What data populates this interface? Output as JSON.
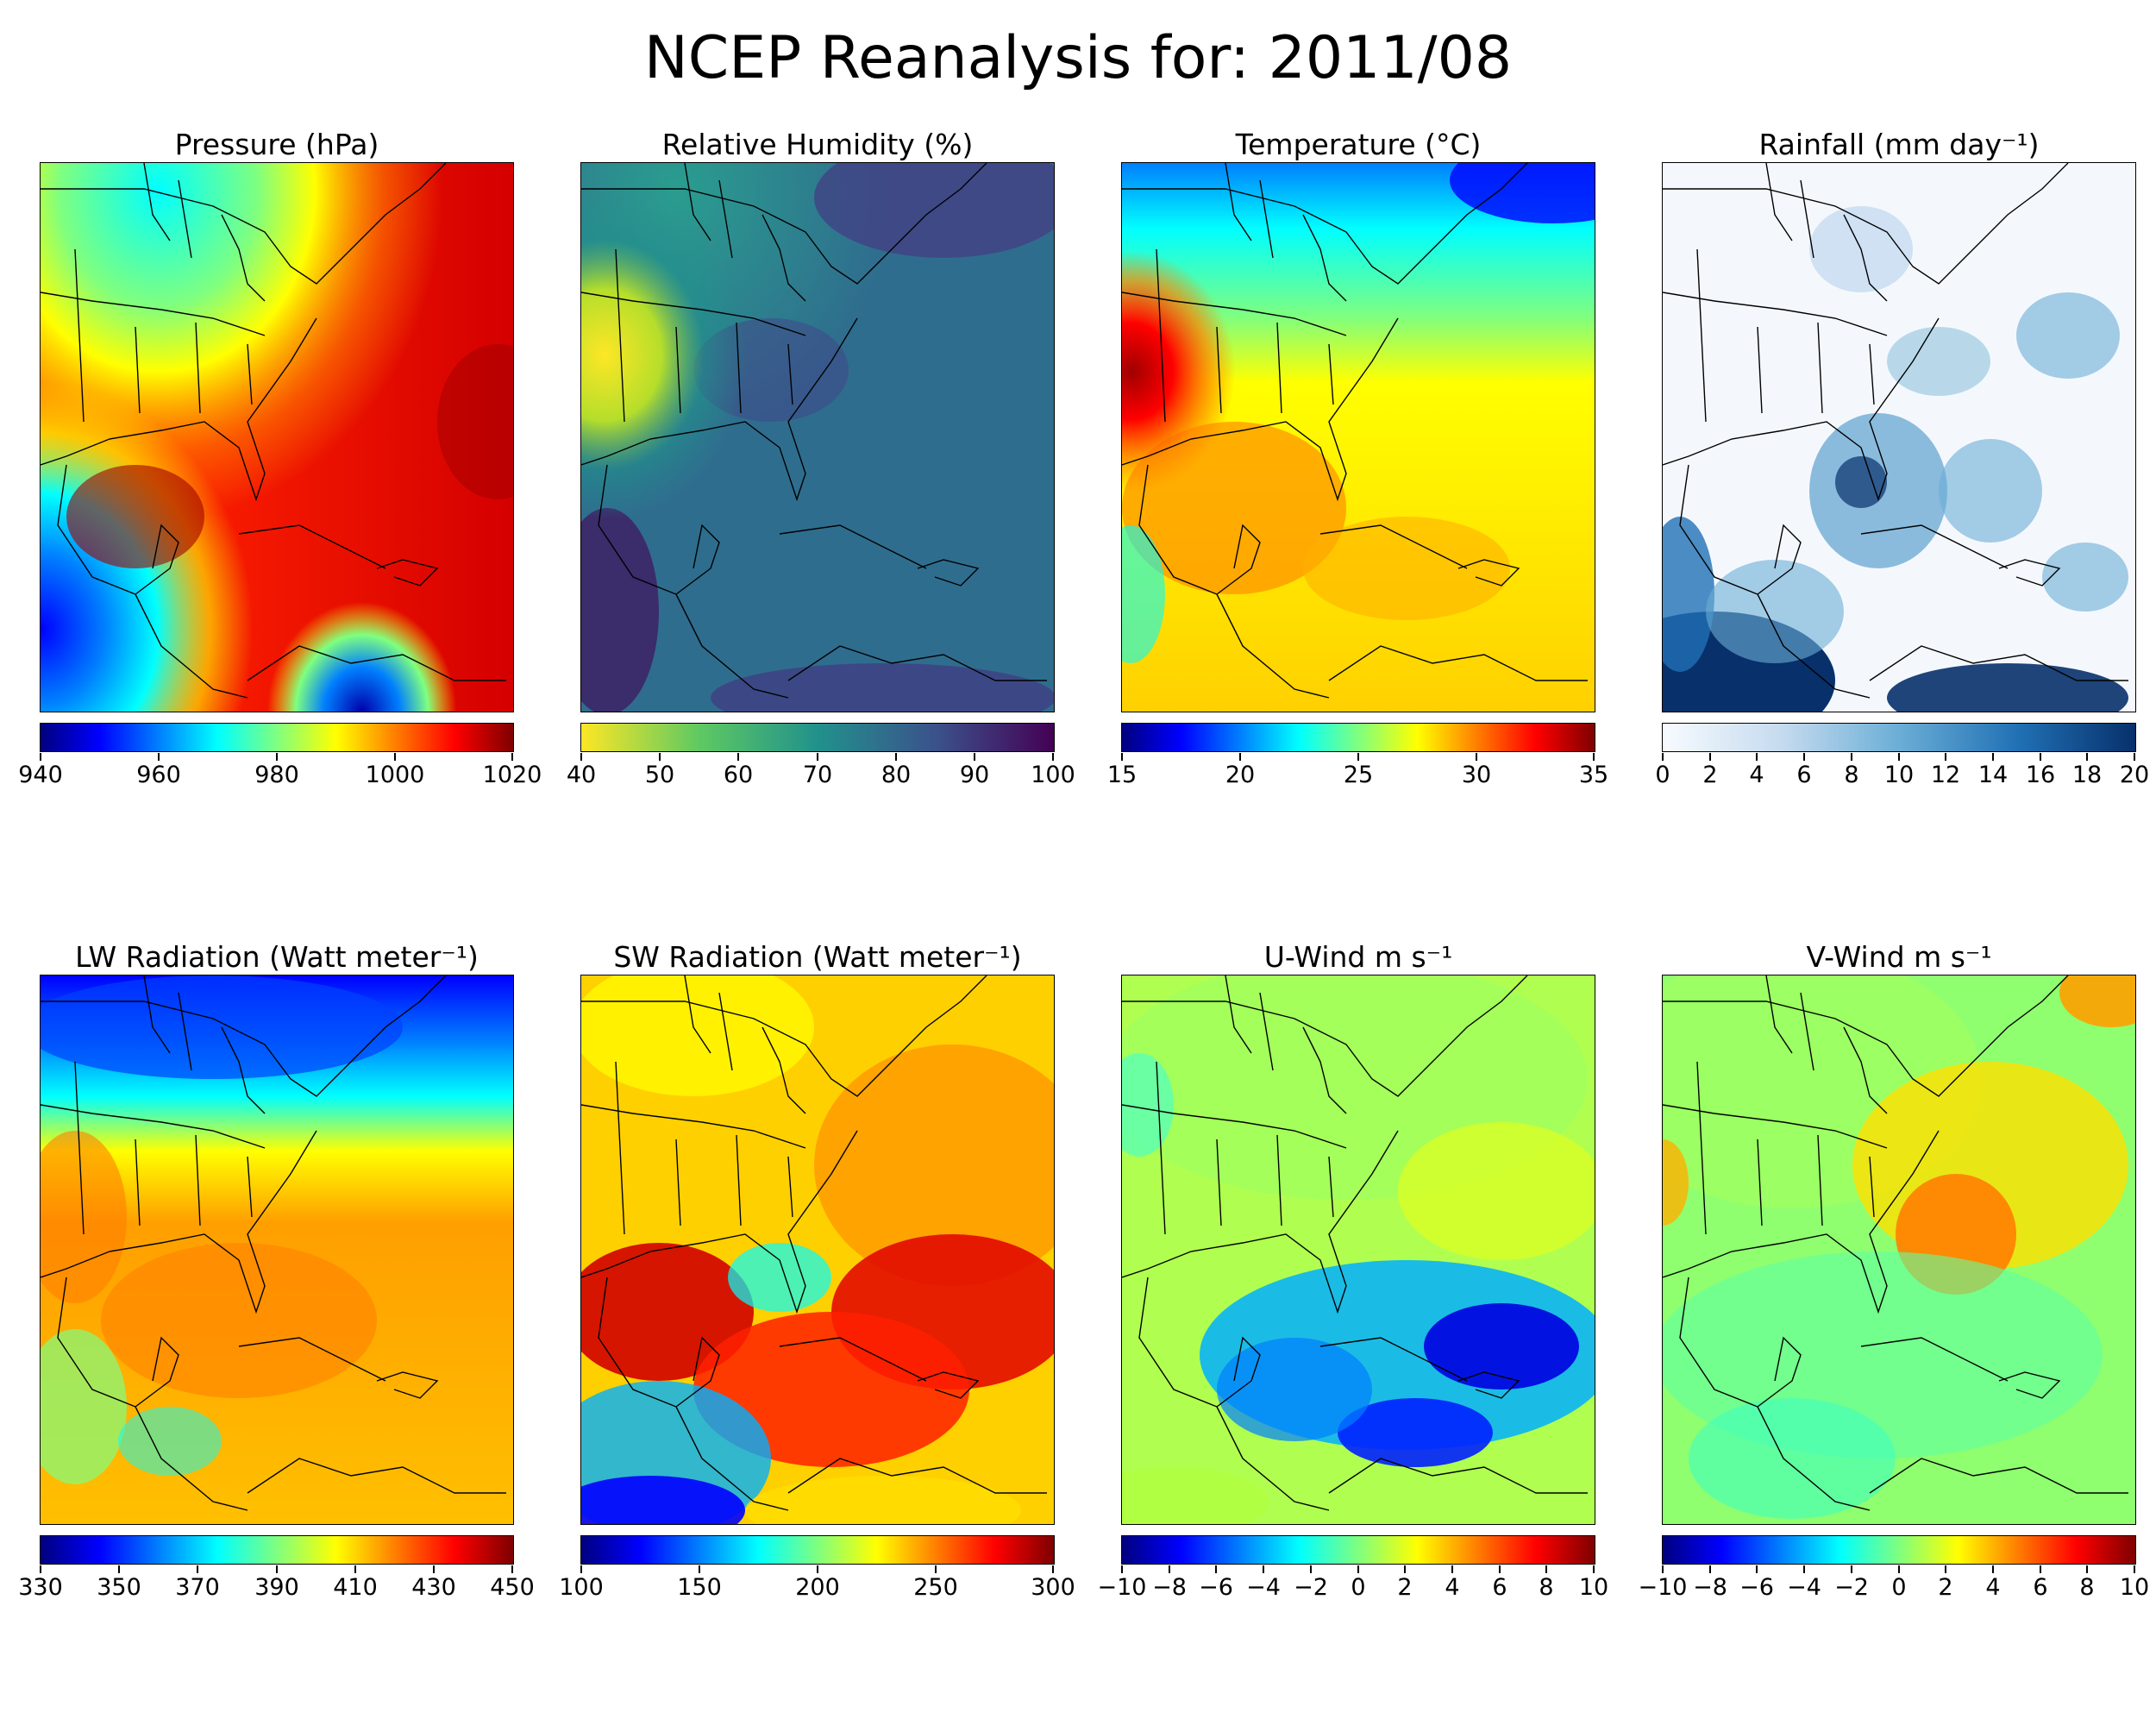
{
  "title": "NCEP Reanalysis for: 2011/08",
  "panels": [
    {
      "id": "pressure",
      "title": "Pressure (hPa)",
      "cmap": "jet",
      "colorbar": {
        "min": 940,
        "max": 1020,
        "ticks": [
          "940",
          "960",
          "980",
          "1000",
          "1020"
        ]
      }
    },
    {
      "id": "humidity",
      "title": "Relative Humidity (%)",
      "cmap": "viridis_r",
      "colorbar": {
        "min": 40,
        "max": 100,
        "ticks": [
          "40",
          "50",
          "60",
          "70",
          "80",
          "90",
          "100"
        ]
      }
    },
    {
      "id": "temperature",
      "title": "Temperature (°C)",
      "cmap": "jet",
      "colorbar": {
        "min": 15,
        "max": 35,
        "ticks": [
          "15",
          "20",
          "25",
          "30",
          "35"
        ]
      }
    },
    {
      "id": "rainfall",
      "title": "Rainfall (mm day⁻¹)",
      "cmap": "blues",
      "colorbar": {
        "min": 0,
        "max": 20,
        "ticks": [
          "0",
          "2",
          "4",
          "6",
          "8",
          "10",
          "12",
          "14",
          "16",
          "18",
          "20"
        ]
      }
    },
    {
      "id": "lw-radiation",
      "title": "LW Radiation (Watt meter⁻¹)",
      "cmap": "jet",
      "colorbar": {
        "min": 330,
        "max": 450,
        "ticks": [
          "330",
          "350",
          "370",
          "390",
          "410",
          "430",
          "450"
        ]
      }
    },
    {
      "id": "sw-radiation",
      "title": "SW Radiation (Watt meter⁻¹)",
      "cmap": "jet",
      "colorbar": {
        "min": 100,
        "max": 300,
        "ticks": [
          "100",
          "150",
          "200",
          "250",
          "300"
        ]
      }
    },
    {
      "id": "u-wind",
      "title": "U-Wind m s⁻¹",
      "cmap": "jet",
      "colorbar": {
        "min": -10,
        "max": 10,
        "ticks": [
          "−10",
          "−8",
          "−6",
          "−4",
          "−2",
          "0",
          "2",
          "4",
          "6",
          "8",
          "10"
        ]
      }
    },
    {
      "id": "v-wind",
      "title": "V-Wind m s⁻¹",
      "cmap": "jet",
      "colorbar": {
        "min": -10,
        "max": 10,
        "ticks": [
          "−10",
          "−8",
          "−6",
          "−4",
          "−2",
          "0",
          "2",
          "4",
          "6",
          "8",
          "10"
        ]
      }
    }
  ],
  "colors": {
    "jet": [
      "#00007f",
      "#0000ff",
      "#007fff",
      "#00ffff",
      "#7fff7f",
      "#ffff00",
      "#ff7f00",
      "#ff0000",
      "#7f0000"
    ],
    "viridis_r": [
      "#fde725",
      "#5ec962",
      "#21918c",
      "#3b528b",
      "#440154"
    ],
    "blues": [
      "#f7fbff",
      "#c6dbef",
      "#6baed6",
      "#2171b5",
      "#08306b"
    ],
    "coastline": "#000000"
  }
}
